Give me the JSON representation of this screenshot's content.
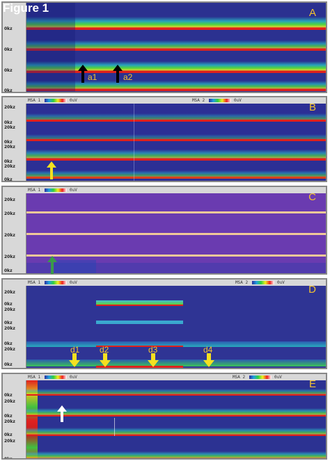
{
  "figure": {
    "title": "Figure 1"
  },
  "header": {
    "left_label": "MSA 1",
    "right_label": "MSA 2",
    "scale_label": "0uV"
  },
  "axis": {
    "top_label": "20kz",
    "bottom_label": "0kz"
  },
  "panels": [
    {
      "letter": "A",
      "labels": [
        "a1",
        "a2"
      ]
    },
    {
      "letter": "B"
    },
    {
      "letter": "C"
    },
    {
      "letter": "D",
      "labels": [
        "d1",
        "d2",
        "d3",
        "d4"
      ]
    },
    {
      "letter": "E"
    }
  ],
  "colors": {
    "panel_bg": "#2a2f86",
    "purple_bg": "#6a3bb0",
    "signal_red": "#e0201c",
    "signal_green": "#50dc3c",
    "label_yellow": "#f2c230",
    "arrow_black": "#000000",
    "arrow_yellow": "#f5e020",
    "arrow_green": "#3a9a4a",
    "arrow_white": "#ffffff"
  }
}
